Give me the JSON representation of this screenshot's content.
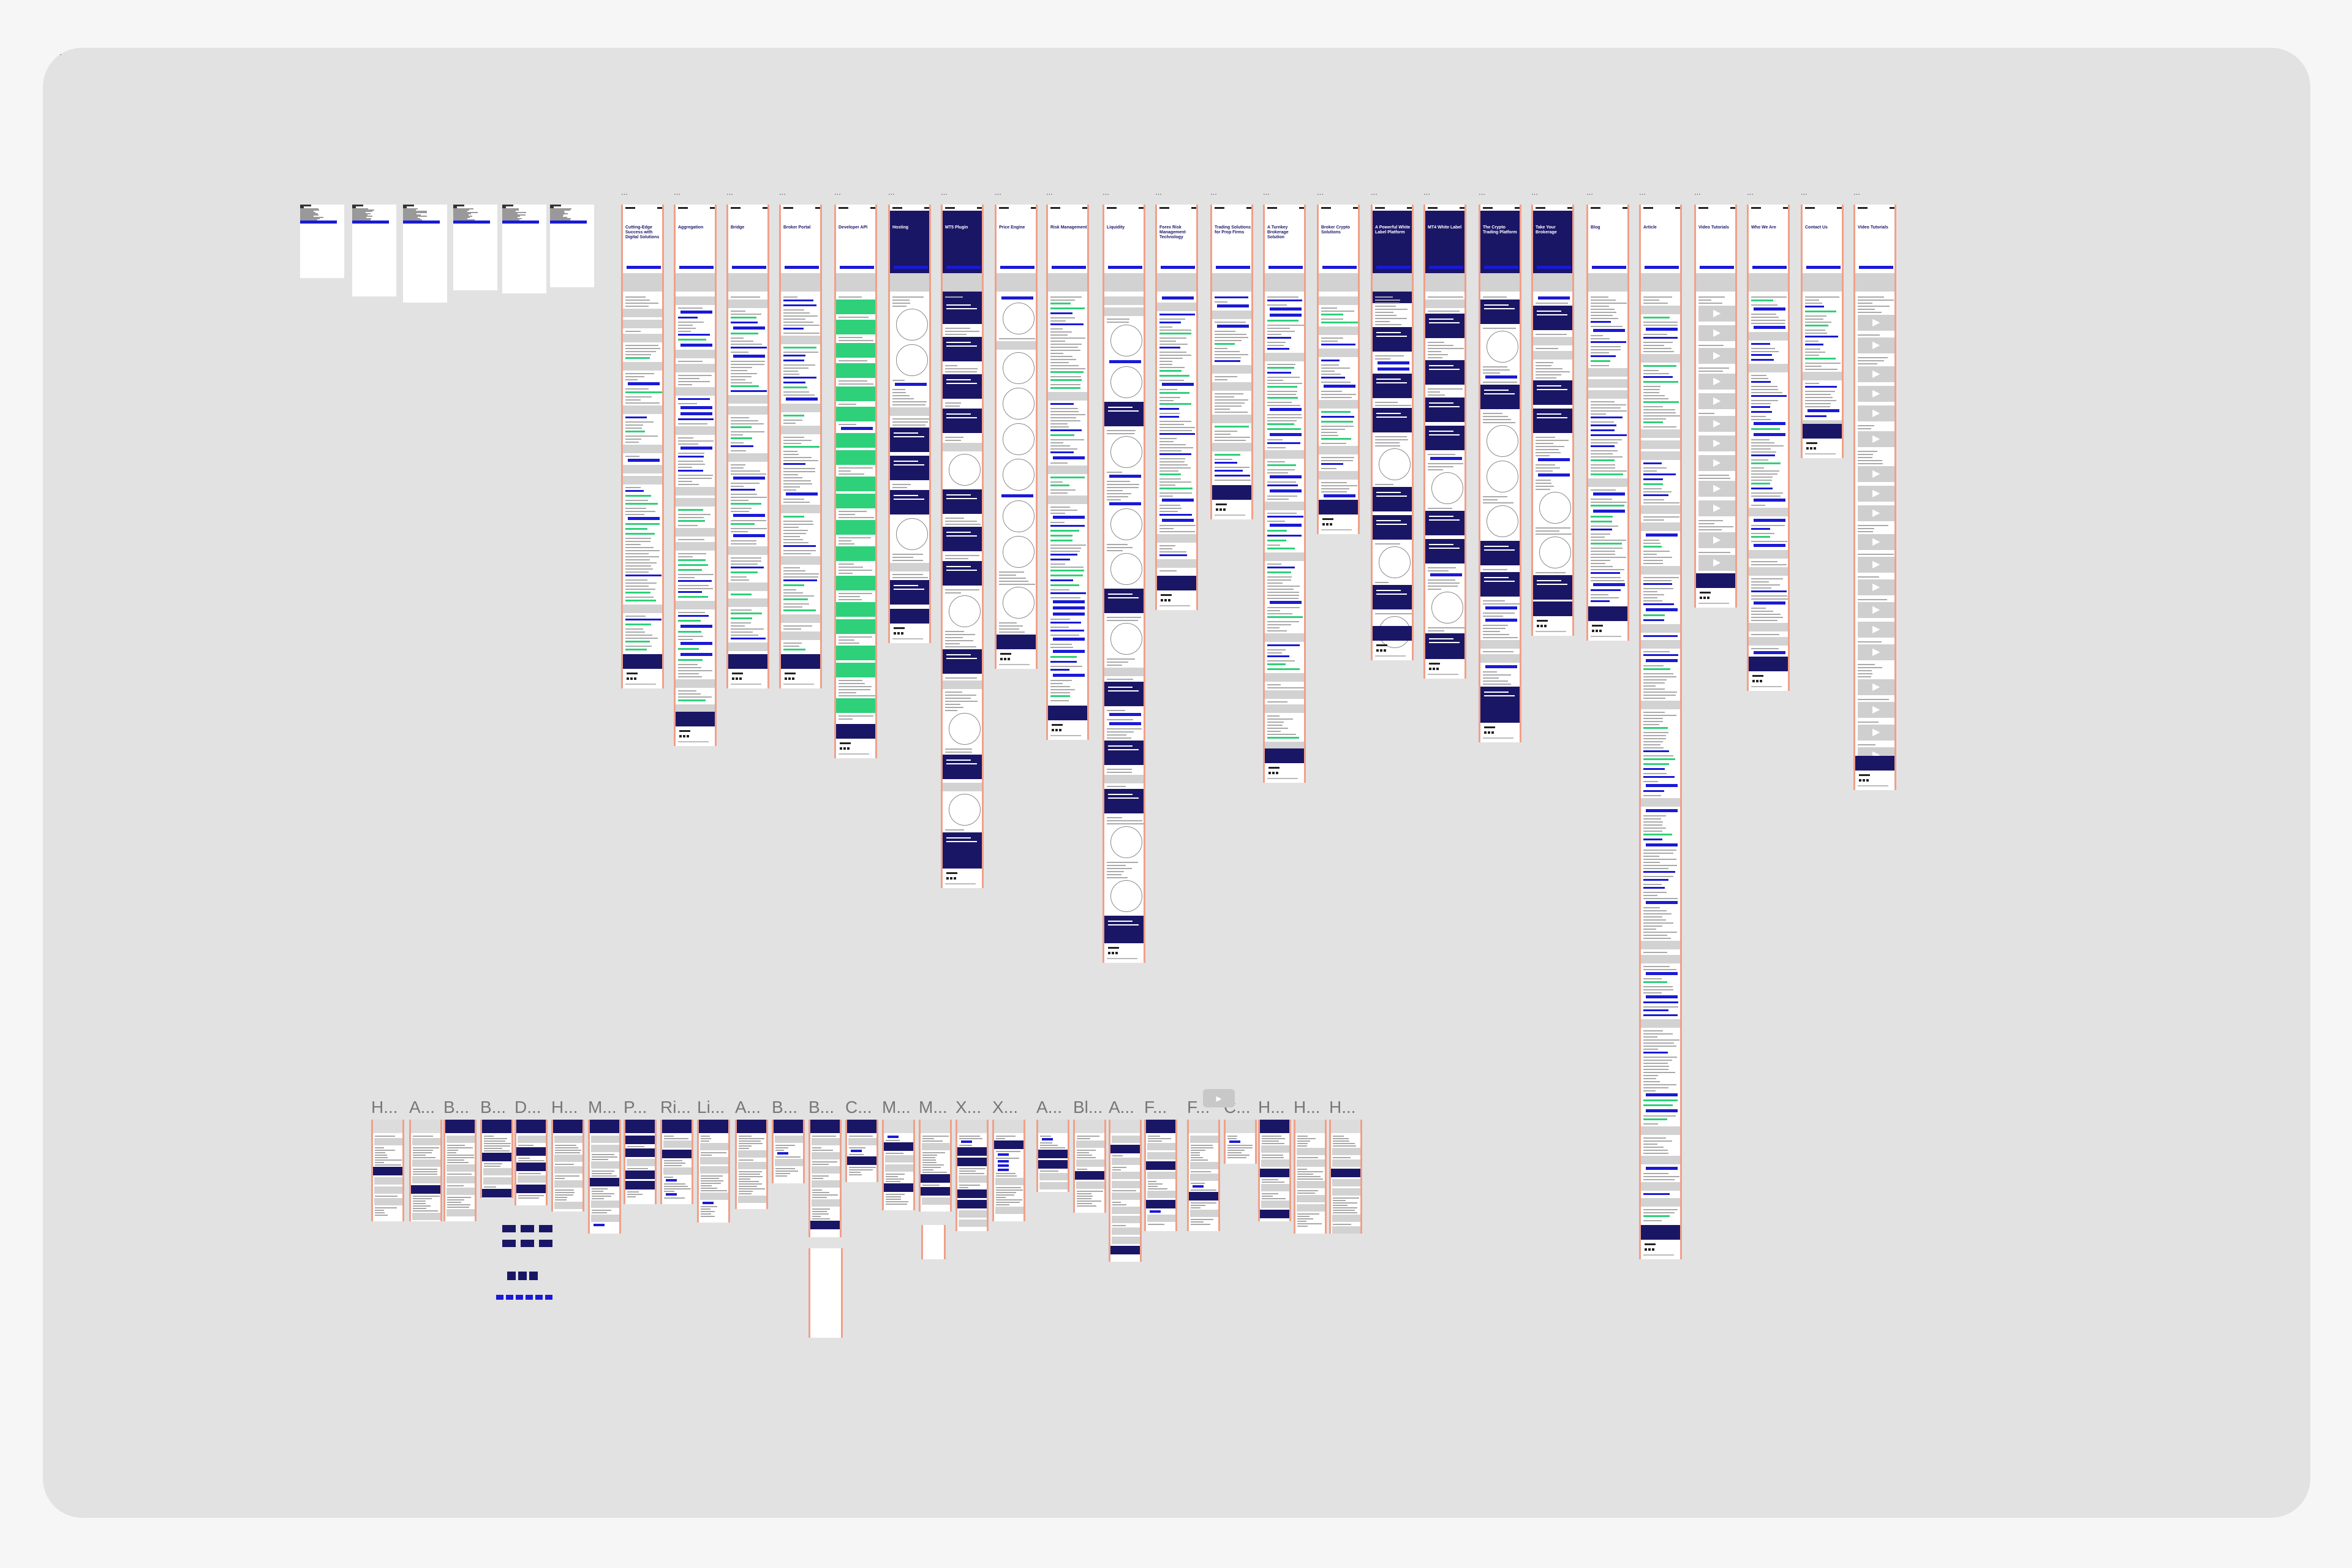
{
  "canvas": {
    "background": "#e2e2e2",
    "page_background": "#f6f6f6"
  },
  "colors": {
    "navy": "#1a1666",
    "blue": "#1a1ad6",
    "green": "#2fd07a",
    "orange_edge": "#f0a08a",
    "gray_block": "#d2d2d2"
  },
  "menu_frames": [
    {
      "label": ""
    },
    {
      "label": ""
    },
    {
      "label": ""
    },
    {
      "label": ""
    },
    {
      "label": ""
    },
    {
      "label": ""
    }
  ],
  "top_frames": [
    {
      "label": "...",
      "title": "Cutting-Edge Success with Digital Solutions",
      "kind": "home"
    },
    {
      "label": "...",
      "title": "Aggregation",
      "kind": "light"
    },
    {
      "label": "...",
      "title": "Bridge",
      "kind": "light"
    },
    {
      "label": "...",
      "title": "Broker Portal",
      "kind": "light"
    },
    {
      "label": "...",
      "title": "Developer API",
      "kind": "green"
    },
    {
      "label": "...",
      "title": "Hosting",
      "kind": "dark"
    },
    {
      "label": "...",
      "title": "MT5 Plugin",
      "kind": "dark"
    },
    {
      "label": "...",
      "title": "Price Engine",
      "kind": "diagram"
    },
    {
      "label": "...",
      "title": "Risk Management",
      "kind": "light"
    },
    {
      "label": "...",
      "title": "Liquidity",
      "kind": "long"
    },
    {
      "label": "...",
      "title": "Forex Risk Management Technology",
      "kind": "light"
    },
    {
      "label": "...",
      "title": "Trading Solutions for Prop Firms",
      "kind": "light"
    },
    {
      "label": "...",
      "title": "A Turnkey Brokerage Solution",
      "kind": "light"
    },
    {
      "label": "...",
      "title": "Broker Crypto Solutions",
      "kind": "light"
    },
    {
      "label": "...",
      "title": "A Powerful White Label Platform",
      "kind": "dark"
    },
    {
      "label": "...",
      "title": "MT4 White Label",
      "kind": "dark"
    },
    {
      "label": "...",
      "title": "The Crypto Trading Platform",
      "kind": "dark"
    },
    {
      "label": "...",
      "title": "Take Your Brokerage",
      "kind": "dark"
    },
    {
      "label": "...",
      "title": "Blog",
      "kind": "light"
    },
    {
      "label": "...",
      "title": "Article",
      "kind": "article"
    },
    {
      "label": "...",
      "title": "Video Tutorials",
      "kind": "video"
    },
    {
      "label": "...",
      "title": "Who We Are",
      "kind": "light"
    },
    {
      "label": "...",
      "title": "Contact Us",
      "kind": "light"
    },
    {
      "label": "...",
      "title": "Video Tutorials",
      "kind": "video"
    }
  ],
  "bottom_frames": [
    {
      "label": "H..."
    },
    {
      "label": "A..."
    },
    {
      "label": "B..."
    },
    {
      "label": "B..."
    },
    {
      "label": "D..."
    },
    {
      "label": "H..."
    },
    {
      "label": "M..."
    },
    {
      "label": "P..."
    },
    {
      "label": "Ri..."
    },
    {
      "label": "Li..."
    },
    {
      "label": "A..."
    },
    {
      "label": "B..."
    },
    {
      "label": "B..."
    },
    {
      "label": "C..."
    },
    {
      "label": "M..."
    },
    {
      "label": "M..."
    },
    {
      "label": "X..."
    },
    {
      "label": "X..."
    },
    {
      "label": "A..."
    },
    {
      "label": "Bl..."
    },
    {
      "label": "A..."
    },
    {
      "label": "F..."
    },
    {
      "label": "F..."
    },
    {
      "label": "C..."
    },
    {
      "label": "H..."
    },
    {
      "label": "H..."
    },
    {
      "label": "H..."
    }
  ]
}
